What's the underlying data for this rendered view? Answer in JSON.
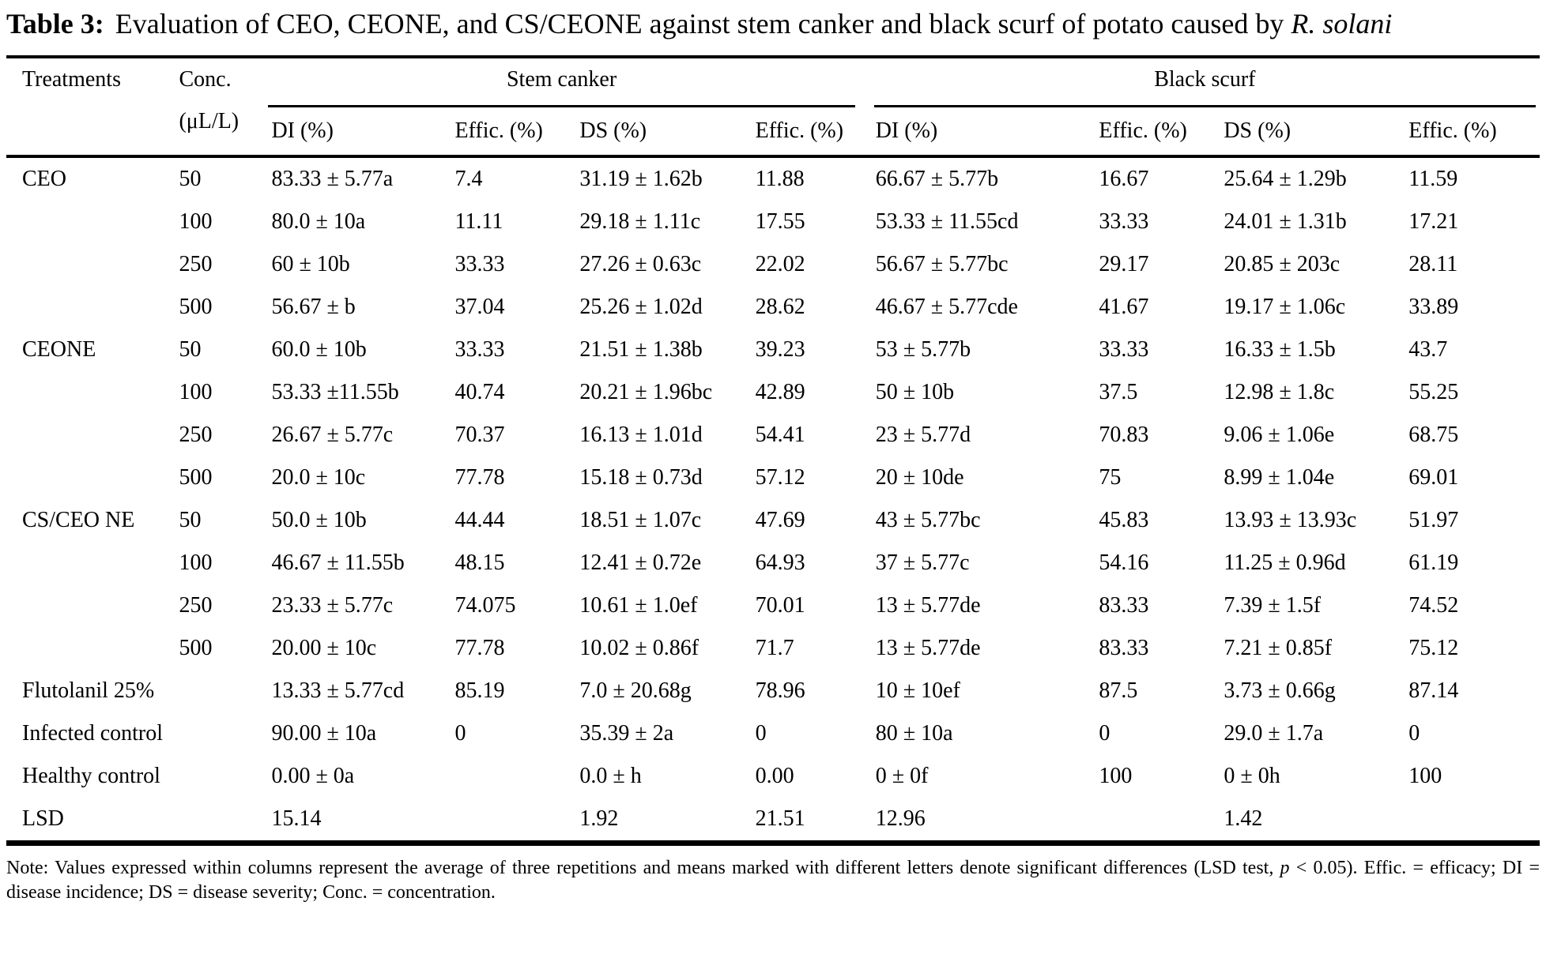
{
  "title": {
    "label": "Table 3:",
    "text": "Evaluation of CEO, CEONE, and CS/CEONE against stem canker and black scurf of potato caused by ",
    "species": "R. solani"
  },
  "table": {
    "headers": {
      "treatments": "Treatments",
      "conc_line1": "Conc.",
      "conc_line2": "(μL/L)",
      "stem_canker": "Stem canker",
      "black_scurf": "Black scurf",
      "sub": [
        "DI (%)",
        "Effic. (%)",
        "DS (%)",
        "Effic. (%)",
        "DI (%)",
        "Effic. (%)",
        "DS (%)",
        "Effic. (%)"
      ]
    },
    "rows": [
      [
        "CEO",
        "50",
        "83.33 ± 5.77a",
        "7.4",
        "31.19 ± 1.62b",
        "11.88",
        "66.67 ± 5.77b",
        "16.67",
        "25.64 ± 1.29b",
        "11.59"
      ],
      [
        "",
        "100",
        "80.0 ± 10a",
        "11.11",
        "29.18 ± 1.11c",
        "17.55",
        "53.33 ± 11.55cd",
        "33.33",
        "24.01 ± 1.31b",
        "17.21"
      ],
      [
        "",
        "250",
        "60 ± 10b",
        "33.33",
        "27.26 ± 0.63c",
        "22.02",
        "56.67 ± 5.77bc",
        "29.17",
        "20.85 ± 203c",
        "28.11"
      ],
      [
        "",
        "500",
        "56.67 ± b",
        "37.04",
        "25.26 ± 1.02d",
        "28.62",
        "46.67 ± 5.77cde",
        "41.67",
        "19.17 ± 1.06c",
        "33.89"
      ],
      [
        "CEONE",
        "50",
        "60.0 ± 10b",
        "33.33",
        "21.51 ± 1.38b",
        "39.23",
        "53 ± 5.77b",
        "33.33",
        "16.33 ± 1.5b",
        "43.7"
      ],
      [
        "",
        "100",
        "53.33 ±11.55b",
        "40.74",
        "20.21 ± 1.96bc",
        "42.89",
        "50 ± 10b",
        "37.5",
        "12.98 ± 1.8c",
        "55.25"
      ],
      [
        "",
        "250",
        "26.67 ± 5.77c",
        "70.37",
        "16.13 ± 1.01d",
        "54.41",
        "23 ± 5.77d",
        "70.83",
        "9.06 ± 1.06e",
        "68.75"
      ],
      [
        "",
        "500",
        "20.0 ± 10c",
        "77.78",
        "15.18 ± 0.73d",
        "57.12",
        "20 ± 10de",
        "75",
        "8.99 ± 1.04e",
        "69.01"
      ],
      [
        "CS/CEO NE",
        "50",
        "50.0 ± 10b",
        "44.44",
        "18.51 ± 1.07c",
        "47.69",
        "43 ± 5.77bc",
        "45.83",
        "13.93 ± 13.93c",
        "51.97"
      ],
      [
        "",
        "100",
        "46.67 ± 11.55b",
        "48.15",
        "12.41 ± 0.72e",
        "64.93",
        "37 ± 5.77c",
        "54.16",
        "11.25 ± 0.96d",
        "61.19"
      ],
      [
        "",
        "250",
        "23.33 ± 5.77c",
        "74.075",
        "10.61 ± 1.0ef",
        "70.01",
        "13 ± 5.77de",
        "83.33",
        "7.39 ± 1.5f",
        "74.52"
      ],
      [
        "",
        "500",
        "20.00 ± 10c",
        "77.78",
        "10.02 ± 0.86f",
        "71.7",
        "13 ± 5.77de",
        "83.33",
        "7.21 ± 0.85f",
        "75.12"
      ],
      [
        "Flutolanil 25%",
        "",
        "13.33 ± 5.77cd",
        "85.19",
        "7.0 ± 20.68g",
        "78.96",
        "10 ± 10ef",
        "87.5",
        "3.73 ± 0.66g",
        "87.14"
      ],
      [
        "Infected control",
        "",
        "90.00 ± 10a",
        "0",
        "35.39 ± 2a",
        "0",
        "80 ± 10a",
        "0",
        "29.0 ± 1.7a",
        "0"
      ],
      [
        "Healthy control",
        "",
        "0.00 ± 0a",
        "",
        "0.0 ± h",
        "0.00",
        "0 ± 0f",
        "100",
        "0 ± 0h",
        "100"
      ],
      [
        "LSD",
        "",
        "15.14",
        "",
        "1.92",
        "21.51",
        "12.96",
        "",
        "1.42",
        ""
      ]
    ]
  },
  "note": {
    "part1": "Note: Values expressed within columns represent the average of three repetitions and means marked with different letters denote significant differences (LSD test, ",
    "italic": "p",
    "part2": " < 0.05). Effic. = efficacy; DI = disease incidence; DS = disease severity; Conc. = concentration."
  }
}
